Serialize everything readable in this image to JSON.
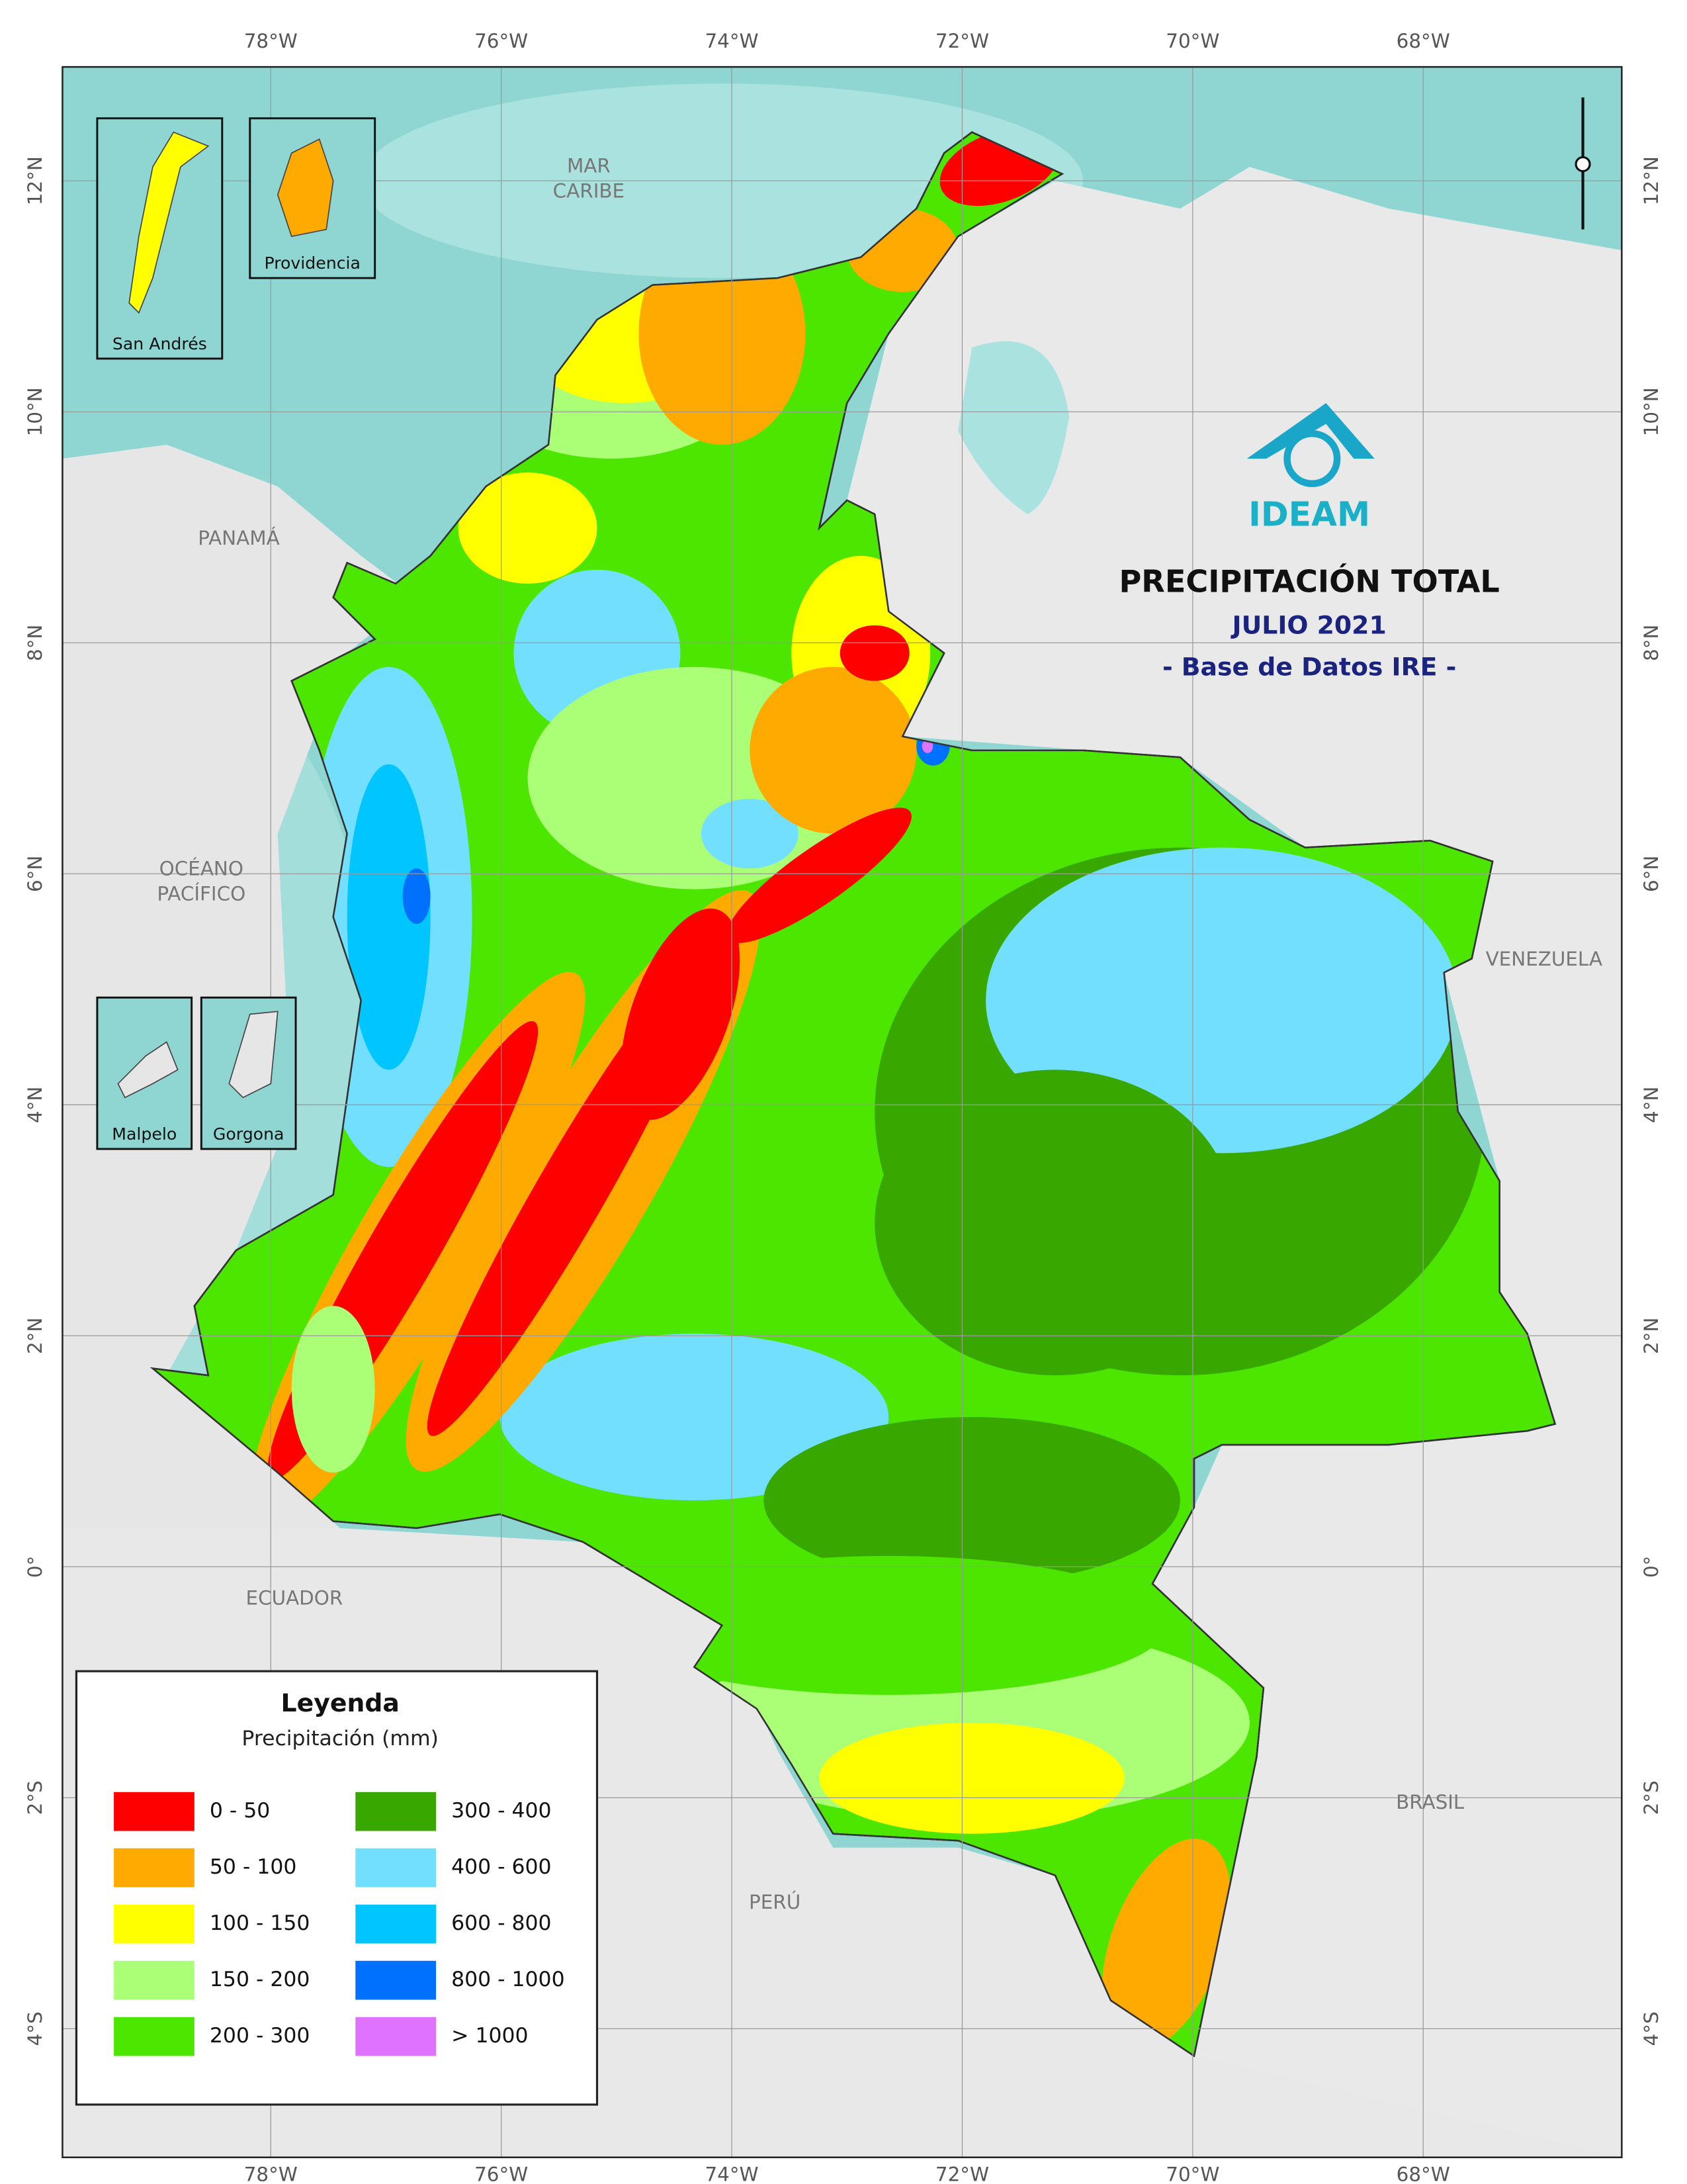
{
  "title": "PRECIPITACIÓN TOTAL",
  "subtitle": "JULIO 2021",
  "source": "- Base de Datos IRE -",
  "logo": "IDEAM",
  "graticule": {
    "longitudes": [
      "78°W",
      "76°W",
      "74°W",
      "72°W",
      "70°W",
      "68°W"
    ],
    "latitudes": [
      "12°N",
      "10°N",
      "8°N",
      "6°N",
      "4°N",
      "2°N",
      "0°",
      "2°S",
      "4°S"
    ]
  },
  "places": [
    {
      "lines": [
        "MAR",
        "CARIBE"
      ]
    },
    {
      "lines": [
        "PANAMÁ"
      ]
    },
    {
      "lines": [
        "OCÉANO",
        "PACÍFICO"
      ]
    },
    {
      "lines": [
        "VENEZUELA"
      ]
    },
    {
      "lines": [
        "ECUADOR"
      ]
    },
    {
      "lines": [
        "PERÚ"
      ]
    },
    {
      "lines": [
        "BRASIL"
      ]
    }
  ],
  "insets": [
    "San Andrés",
    "Providencia",
    "Malpelo",
    "Gorgona"
  ],
  "legend": {
    "title": "Leyenda",
    "subtitle": "Precipitación (mm)",
    "items": [
      {
        "label": "0 - 50",
        "color": "#ff0000"
      },
      {
        "label": "50 - 100",
        "color": "#ffaa00"
      },
      {
        "label": "100 - 150",
        "color": "#ffff00"
      },
      {
        "label": "150 - 200",
        "color": "#aaff77"
      },
      {
        "label": "200 - 300",
        "color": "#4ce600"
      },
      {
        "label": "300 - 400",
        "color": "#38a800"
      },
      {
        "label": "400 - 600",
        "color": "#73dfff"
      },
      {
        "label": "600 - 800",
        "color": "#00c5ff"
      },
      {
        "label": "800 - 1000",
        "color": "#0070ff"
      },
      {
        "label": "> 1000",
        "color": "#df73ff"
      }
    ]
  }
}
